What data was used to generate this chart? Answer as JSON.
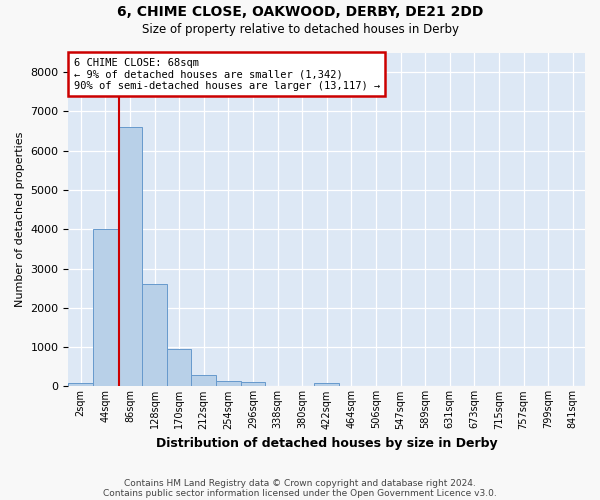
{
  "title_line1": "6, CHIME CLOSE, OAKWOOD, DERBY, DE21 2DD",
  "title_line2": "Size of property relative to detached houses in Derby",
  "xlabel": "Distribution of detached houses by size in Derby",
  "ylabel": "Number of detached properties",
  "bar_labels": [
    "2sqm",
    "44sqm",
    "86sqm",
    "128sqm",
    "170sqm",
    "212sqm",
    "254sqm",
    "296sqm",
    "338sqm",
    "380sqm",
    "422sqm",
    "464sqm",
    "506sqm",
    "547sqm",
    "589sqm",
    "631sqm",
    "673sqm",
    "715sqm",
    "757sqm",
    "799sqm",
    "841sqm"
  ],
  "bar_values": [
    75,
    4000,
    6600,
    2600,
    950,
    300,
    130,
    110,
    0,
    0,
    75,
    0,
    0,
    0,
    0,
    0,
    0,
    0,
    0,
    0,
    0
  ],
  "bar_color": "#b8d0e8",
  "bar_edge_color": "#6699cc",
  "vline_x": 1.55,
  "vline_color": "#cc0000",
  "ylim": [
    0,
    8500
  ],
  "yticks": [
    0,
    1000,
    2000,
    3000,
    4000,
    5000,
    6000,
    7000,
    8000
  ],
  "annotation_text": "6 CHIME CLOSE: 68sqm\n← 9% of detached houses are smaller (1,342)\n90% of semi-detached houses are larger (13,117) →",
  "annotation_box_facecolor": "#ffffff",
  "annotation_box_edgecolor": "#cc0000",
  "footnote_line1": "Contains HM Land Registry data © Crown copyright and database right 2024.",
  "footnote_line2": "Contains public sector information licensed under the Open Government Licence v3.0.",
  "fig_facecolor": "#f8f8f8",
  "plot_bg_color": "#dde8f5",
  "grid_color": "#ffffff"
}
